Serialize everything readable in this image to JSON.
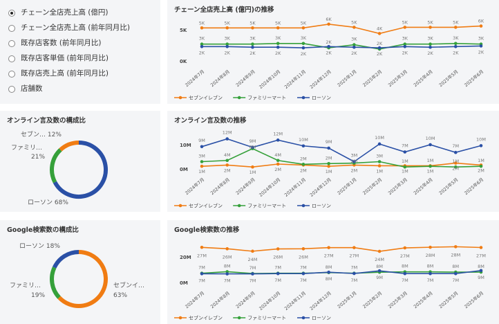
{
  "metric_selector": {
    "options": [
      {
        "label": "チェーン全店売上高 (億円)",
        "selected": true
      },
      {
        "label": "チェーン全店売上高 (前年同月比)",
        "selected": false
      },
      {
        "label": "既存店客数 (前年同月比)",
        "selected": false
      },
      {
        "label": "既存店客単価 (前年同月比)",
        "selected": false
      },
      {
        "label": "既存店売上高 (前年同月比)",
        "selected": false
      },
      {
        "label": "店舗数",
        "selected": false
      }
    ]
  },
  "colors": {
    "seven": "#f07c13",
    "family": "#35a03a",
    "lawson": "#2a50a6"
  },
  "legend": [
    "セブンイレブン",
    "ファミリーマート",
    "ローソン"
  ],
  "chart_data": [
    {
      "type": "line",
      "title": "チェーン全店売上高 (億円)の推移",
      "categories": [
        "2024年7月",
        "2024年8月",
        "2024年9月",
        "2024年10月",
        "2024年11月",
        "2024年12月",
        "2025年1月",
        "2025年2月",
        "2025年3月",
        "2025年4月",
        "2025年5月",
        "2025年6月"
      ],
      "unit": "K",
      "yticks": [
        {
          "value": 0,
          "label": "0K"
        },
        {
          "value": 5,
          "label": "5K"
        }
      ],
      "ylim": [
        0,
        6
      ],
      "legend_position": "bottom-left",
      "series": [
        {
          "name": "セブンイレブン",
          "values": [
            5.3,
            5.3,
            5.3,
            5.3,
            5.3,
            5.9,
            5.4,
            4.4,
            5.4,
            5.4,
            5.4,
            5.6
          ]
        },
        {
          "name": "ファミリーマート",
          "values": [
            2.7,
            2.7,
            2.7,
            2.8,
            2.8,
            2.1,
            2.6,
            1.9,
            2.7,
            2.7,
            2.8,
            2.7
          ]
        },
        {
          "name": "ローソン",
          "values": [
            2.3,
            2.3,
            2.2,
            2.2,
            2.1,
            2.3,
            2.2,
            2.1,
            2.3,
            2.2,
            2.3,
            2.4
          ]
        }
      ]
    },
    {
      "type": "line",
      "title": "オンライン言及数の推移",
      "categories": [
        "2024年7月",
        "2024年8月",
        "2024年9月",
        "2024年10月",
        "2024年11月",
        "2024年12月",
        "2025年1月",
        "2025年2月",
        "2025年3月",
        "2025年4月",
        "2025年5月",
        "2025年6月"
      ],
      "unit": "M",
      "yticks": [
        {
          "value": 0,
          "label": "0M"
        },
        {
          "value": 10,
          "label": "10M"
        }
      ],
      "ylim": [
        0,
        13
      ],
      "legend_position": "bottom-left",
      "series": [
        {
          "name": "セブンイレブン",
          "values": [
            1.1,
            1.6,
            0.8,
            2.0,
            1.6,
            1.1,
            1.6,
            1.3,
            1.3,
            1.3,
            2.4,
            1.6
          ]
        },
        {
          "name": "ファミリーマート",
          "values": [
            3.0,
            3.5,
            8.4,
            3.5,
            1.9,
            2.2,
            2.4,
            3.0,
            0.8,
            1.1,
            0.8,
            1.1
          ]
        },
        {
          "name": "ローソン",
          "values": [
            9.2,
            12.4,
            8.9,
            11.9,
            9.5,
            8.6,
            3.0,
            10.3,
            7.0,
            10.0,
            6.8,
            9.6
          ]
        }
      ]
    },
    {
      "type": "line",
      "title": "Google検索数の推移",
      "categories": [
        "2024年7月",
        "2024年8月",
        "2024年9月",
        "2024年10月",
        "2024年11月",
        "2024年12月",
        "2025年1月",
        "2025年2月",
        "2025年3月",
        "2025年4月",
        "2025年5月",
        "2025年6月"
      ],
      "unit": "M",
      "yticks": [
        {
          "value": 0,
          "label": "0M"
        },
        {
          "value": 20,
          "label": "20M"
        }
      ],
      "ylim": [
        0,
        30
      ],
      "legend_position": "bottom-left",
      "series": [
        {
          "name": "セブンイレブン",
          "values": [
            27.4,
            26.3,
            24.4,
            26.2,
            26.3,
            27.2,
            27.2,
            24.3,
            27.0,
            27.5,
            27.9,
            27.3
          ]
        },
        {
          "name": "ファミリーマート",
          "values": [
            7.2,
            8.4,
            7.0,
            7.2,
            7.2,
            7.7,
            7.2,
            8.0,
            8.3,
            8.3,
            8.1,
            8.1
          ]
        },
        {
          "name": "ローソン",
          "values": [
            6.8,
            6.7,
            6.7,
            6.9,
            6.9,
            8.0,
            7.0,
            9.1,
            6.9,
            6.9,
            6.9,
            9.3
          ]
        }
      ]
    },
    {
      "type": "pie",
      "title": "オンライン言及数の構成比",
      "slices": [
        {
          "name": "ローソン",
          "label": "ローソン 68%",
          "value": 68,
          "color": "#2a50a6"
        },
        {
          "name": "ファミリーマート",
          "label": "ファミリ…",
          "pct": "21%",
          "value": 21,
          "color": "#35a03a"
        },
        {
          "name": "セブンイレブン",
          "label": "セブン…",
          "pct": "12%",
          "value": 12,
          "color": "#f07c13"
        }
      ]
    },
    {
      "type": "pie",
      "title": "Google検索数の構成比",
      "slices": [
        {
          "name": "セブンイレブン",
          "label": "セブンイ…",
          "pct": "63%",
          "value": 63,
          "color": "#f07c13"
        },
        {
          "name": "ファミリーマート",
          "label": "ファミリ…",
          "pct": "19%",
          "value": 19,
          "color": "#35a03a"
        },
        {
          "name": "ローソン",
          "label": "ローソン 18%",
          "value": 18,
          "color": "#2a50a6"
        }
      ]
    }
  ]
}
